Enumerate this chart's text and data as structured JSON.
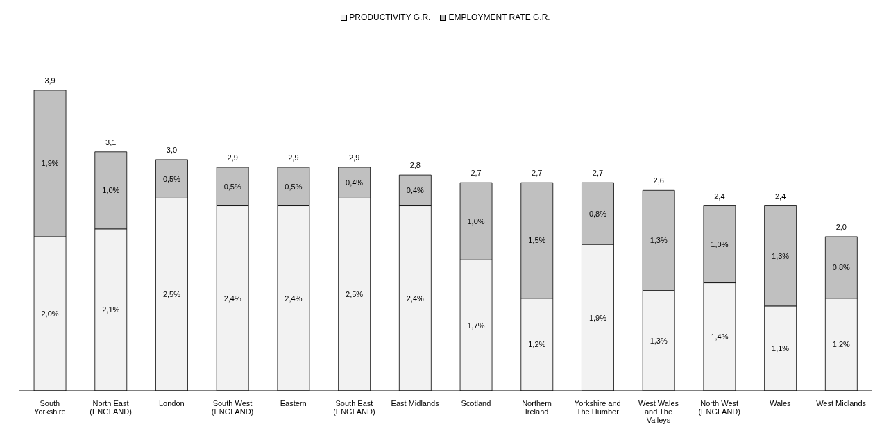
{
  "chart_data": {
    "type": "bar",
    "stacked": true,
    "legend": "top",
    "categories": [
      "South Yorkshire",
      "North East (ENGLAND)",
      "London",
      "South West (ENGLAND)",
      "Eastern",
      "South East (ENGLAND)",
      "East Midlands",
      "Scotland",
      "Northern Ireland",
      "Yorkshire and The Humber",
      "West Wales and The Valleys",
      "North West (ENGLAND)",
      "Wales",
      "West Midlands"
    ],
    "series": [
      {
        "name": "PRODUCTIVITY  G.R.",
        "color": "#f2f2f2",
        "values": [
          2.0,
          2.1,
          2.5,
          2.4,
          2.4,
          2.5,
          2.4,
          1.7,
          1.2,
          1.9,
          1.3,
          1.4,
          1.1,
          1.2
        ],
        "value_labels": [
          "2,0%",
          "2,1%",
          "2,5%",
          "2,4%",
          "2,4%",
          "2,5%",
          "2,4%",
          "1,7%",
          "1,2%",
          "1,9%",
          "1,3%",
          "1,4%",
          "1,1%",
          "1,2%"
        ]
      },
      {
        "name": "EMPLOYMENT RATE G.R.",
        "color": "#c0c0c0",
        "values": [
          1.9,
          1.0,
          0.5,
          0.5,
          0.5,
          0.4,
          0.4,
          1.0,
          1.5,
          0.8,
          1.3,
          1.0,
          1.3,
          0.8
        ],
        "value_labels": [
          "1,9%",
          "1,0%",
          "0,5%",
          "0,5%",
          "0,5%",
          "0,4%",
          "0,4%",
          "1,0%",
          "1,5%",
          "0,8%",
          "1,3%",
          "1,0%",
          "1,3%",
          "0,8%"
        ]
      }
    ],
    "totals": [
      "3,9",
      "3,1",
      "3,0",
      "2,9",
      "2,9",
      "2,9",
      "2,8",
      "2,7",
      "2,7",
      "2,7",
      "2,6",
      "2,4",
      "2,4",
      "2,0"
    ]
  }
}
